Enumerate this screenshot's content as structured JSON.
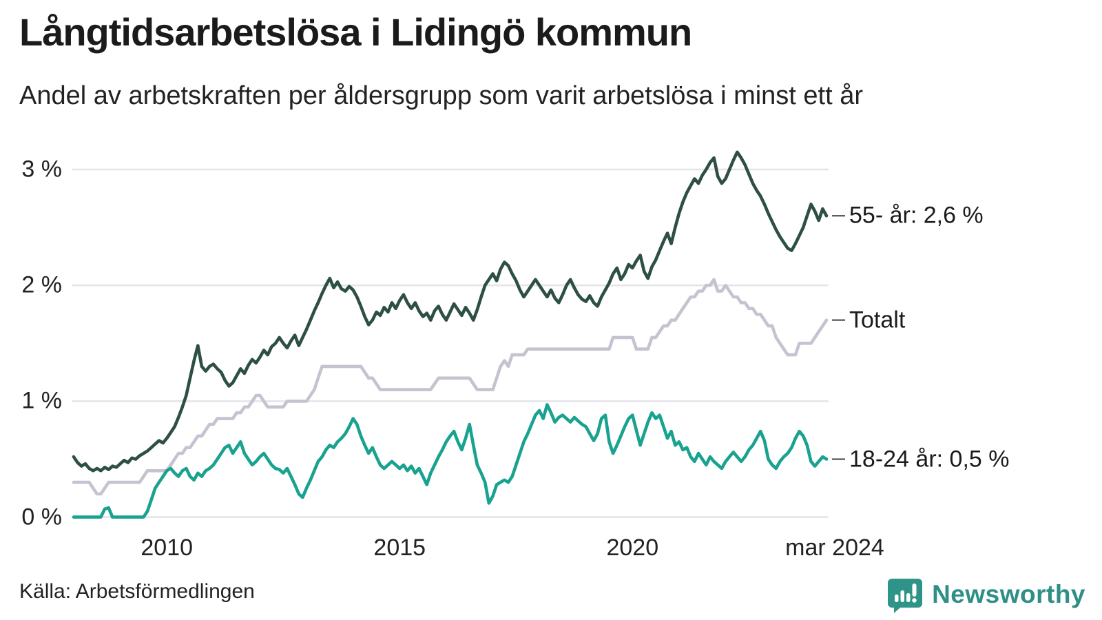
{
  "header": {
    "title": "Långtidsarbetslösa i Lidingö kommun",
    "subtitle": "Andel av arbetskraften per åldersgrupp som varit arbetslösa i minst ett år"
  },
  "footer": {
    "source": "Källa: Arbetsförmedlingen",
    "brand": "Newsworthy"
  },
  "colors": {
    "grid": "#e4e4e8",
    "axis_text": "#222222",
    "tick_dash": "#3d3d3d",
    "brand_teal": "#2e8f86",
    "background": "#ffffff"
  },
  "chart_data": {
    "type": "line",
    "title": "Långtidsarbetslösa i Lidingö kommun",
    "subtitle": "Andel av arbetskraften per åldersgrupp som varit arbetslösa i minst ett år",
    "x_start": "2008-01",
    "x_end": "2024-03",
    "frequency": "monthly",
    "grid": "horizontal",
    "ylim": [
      0,
      3.3
    ],
    "y_ticks": [
      {
        "value": 0,
        "label": "0 %"
      },
      {
        "value": 1,
        "label": "1 %"
      },
      {
        "value": 2,
        "label": "2 %"
      },
      {
        "value": 3,
        "label": "3 %"
      }
    ],
    "x_ticks": [
      {
        "index": 24,
        "label": "2010"
      },
      {
        "index": 84,
        "label": "2015"
      },
      {
        "index": 144,
        "label": "2020"
      },
      {
        "index": 194,
        "label": "mar 2024"
      }
    ],
    "series": [
      {
        "name": "55- år",
        "end_label": "55- år: 2,6 %",
        "color": "#2d4f45",
        "values": [
          0.52,
          0.47,
          0.44,
          0.46,
          0.42,
          0.4,
          0.42,
          0.4,
          0.43,
          0.41,
          0.44,
          0.43,
          0.46,
          0.49,
          0.47,
          0.51,
          0.5,
          0.53,
          0.55,
          0.57,
          0.6,
          0.63,
          0.66,
          0.64,
          0.68,
          0.73,
          0.78,
          0.86,
          0.95,
          1.05,
          1.2,
          1.35,
          1.48,
          1.3,
          1.26,
          1.3,
          1.32,
          1.28,
          1.25,
          1.18,
          1.13,
          1.16,
          1.22,
          1.28,
          1.24,
          1.31,
          1.36,
          1.33,
          1.38,
          1.44,
          1.4,
          1.47,
          1.5,
          1.55,
          1.5,
          1.46,
          1.52,
          1.57,
          1.48,
          1.55,
          1.62,
          1.7,
          1.78,
          1.85,
          1.93,
          2.0,
          2.06,
          1.98,
          2.03,
          1.97,
          1.95,
          1.99,
          1.96,
          1.9,
          1.82,
          1.73,
          1.66,
          1.7,
          1.77,
          1.74,
          1.81,
          1.77,
          1.85,
          1.8,
          1.87,
          1.92,
          1.85,
          1.8,
          1.85,
          1.78,
          1.73,
          1.76,
          1.7,
          1.78,
          1.82,
          1.75,
          1.7,
          1.77,
          1.84,
          1.79,
          1.74,
          1.81,
          1.76,
          1.7,
          1.79,
          1.9,
          2.0,
          2.05,
          2.1,
          2.04,
          2.14,
          2.2,
          2.17,
          2.1,
          2.04,
          1.96,
          1.9,
          1.95,
          2.0,
          2.05,
          2.0,
          1.95,
          1.9,
          1.96,
          1.89,
          1.85,
          1.92,
          2.0,
          2.05,
          1.98,
          1.92,
          1.88,
          1.86,
          1.91,
          1.85,
          1.82,
          1.9,
          1.96,
          2.02,
          2.1,
          2.15,
          2.05,
          2.1,
          2.18,
          2.15,
          2.21,
          2.26,
          2.12,
          2.06,
          2.16,
          2.22,
          2.3,
          2.38,
          2.45,
          2.36,
          2.5,
          2.62,
          2.72,
          2.8,
          2.86,
          2.92,
          2.88,
          2.95,
          3.0,
          3.06,
          3.1,
          2.94,
          2.88,
          2.92,
          3.0,
          3.08,
          3.15,
          3.1,
          3.04,
          2.96,
          2.88,
          2.82,
          2.77,
          2.7,
          2.62,
          2.55,
          2.48,
          2.42,
          2.37,
          2.32,
          2.3,
          2.36,
          2.43,
          2.5,
          2.6,
          2.7,
          2.64,
          2.56,
          2.66,
          2.6
        ]
      },
      {
        "name": "Totalt",
        "end_label": "Totalt",
        "color": "#c5c3d0",
        "values": [
          0.3,
          0.3,
          0.3,
          0.3,
          0.3,
          0.25,
          0.2,
          0.2,
          0.25,
          0.3,
          0.3,
          0.3,
          0.3,
          0.3,
          0.3,
          0.3,
          0.3,
          0.3,
          0.35,
          0.4,
          0.4,
          0.4,
          0.4,
          0.4,
          0.4,
          0.45,
          0.5,
          0.55,
          0.55,
          0.6,
          0.6,
          0.65,
          0.7,
          0.7,
          0.75,
          0.8,
          0.8,
          0.85,
          0.85,
          0.85,
          0.85,
          0.85,
          0.9,
          0.9,
          0.95,
          0.95,
          1.0,
          1.05,
          1.05,
          1.0,
          0.95,
          0.95,
          0.95,
          0.95,
          0.95,
          1.0,
          1.0,
          1.0,
          1.0,
          1.0,
          1.0,
          1.05,
          1.1,
          1.2,
          1.3,
          1.3,
          1.3,
          1.3,
          1.3,
          1.3,
          1.3,
          1.3,
          1.3,
          1.3,
          1.3,
          1.25,
          1.2,
          1.2,
          1.15,
          1.1,
          1.1,
          1.1,
          1.1,
          1.1,
          1.1,
          1.1,
          1.1,
          1.1,
          1.1,
          1.1,
          1.1,
          1.1,
          1.1,
          1.15,
          1.2,
          1.2,
          1.2,
          1.2,
          1.2,
          1.2,
          1.2,
          1.2,
          1.2,
          1.15,
          1.1,
          1.1,
          1.1,
          1.1,
          1.1,
          1.2,
          1.3,
          1.35,
          1.3,
          1.4,
          1.4,
          1.4,
          1.4,
          1.45,
          1.45,
          1.45,
          1.45,
          1.45,
          1.45,
          1.45,
          1.45,
          1.45,
          1.45,
          1.45,
          1.45,
          1.45,
          1.45,
          1.45,
          1.45,
          1.45,
          1.45,
          1.45,
          1.45,
          1.45,
          1.45,
          1.55,
          1.55,
          1.55,
          1.55,
          1.55,
          1.55,
          1.45,
          1.45,
          1.45,
          1.45,
          1.55,
          1.55,
          1.6,
          1.65,
          1.65,
          1.7,
          1.7,
          1.75,
          1.8,
          1.85,
          1.9,
          1.9,
          1.95,
          1.95,
          2.0,
          2.0,
          2.05,
          1.95,
          1.95,
          2.0,
          1.95,
          1.9,
          1.9,
          1.85,
          1.85,
          1.8,
          1.8,
          1.75,
          1.75,
          1.7,
          1.65,
          1.65,
          1.55,
          1.5,
          1.45,
          1.4,
          1.4,
          1.4,
          1.5,
          1.5,
          1.5,
          1.5,
          1.55,
          1.6,
          1.65,
          1.7
        ]
      },
      {
        "name": "18-24 år",
        "end_label": "18-24 år: 0,5 %",
        "color": "#18a28f",
        "values": [
          0.0,
          0.0,
          0.0,
          0.0,
          0.0,
          0.0,
          0.0,
          0.0,
          0.07,
          0.08,
          0.0,
          0.0,
          0.0,
          0.0,
          0.0,
          0.0,
          0.0,
          0.0,
          0.0,
          0.05,
          0.15,
          0.25,
          0.3,
          0.35,
          0.4,
          0.42,
          0.38,
          0.35,
          0.4,
          0.42,
          0.35,
          0.32,
          0.38,
          0.35,
          0.4,
          0.42,
          0.45,
          0.5,
          0.55,
          0.6,
          0.62,
          0.55,
          0.6,
          0.65,
          0.55,
          0.5,
          0.45,
          0.48,
          0.52,
          0.55,
          0.5,
          0.45,
          0.42,
          0.41,
          0.38,
          0.42,
          0.35,
          0.28,
          0.2,
          0.17,
          0.25,
          0.32,
          0.4,
          0.48,
          0.52,
          0.58,
          0.62,
          0.6,
          0.65,
          0.68,
          0.72,
          0.78,
          0.85,
          0.8,
          0.7,
          0.62,
          0.55,
          0.6,
          0.52,
          0.45,
          0.42,
          0.45,
          0.48,
          0.45,
          0.42,
          0.45,
          0.4,
          0.44,
          0.38,
          0.42,
          0.35,
          0.28,
          0.38,
          0.45,
          0.52,
          0.58,
          0.65,
          0.7,
          0.74,
          0.65,
          0.58,
          0.68,
          0.8,
          0.62,
          0.45,
          0.38,
          0.3,
          0.12,
          0.18,
          0.28,
          0.3,
          0.32,
          0.3,
          0.35,
          0.45,
          0.55,
          0.65,
          0.72,
          0.8,
          0.88,
          0.92,
          0.85,
          0.97,
          0.9,
          0.82,
          0.86,
          0.88,
          0.85,
          0.82,
          0.86,
          0.83,
          0.8,
          0.78,
          0.72,
          0.66,
          0.72,
          0.85,
          0.88,
          0.65,
          0.55,
          0.62,
          0.7,
          0.78,
          0.85,
          0.88,
          0.75,
          0.62,
          0.72,
          0.82,
          0.9,
          0.85,
          0.88,
          0.78,
          0.68,
          0.74,
          0.62,
          0.65,
          0.58,
          0.6,
          0.52,
          0.48,
          0.55,
          0.5,
          0.45,
          0.52,
          0.48,
          0.45,
          0.42,
          0.48,
          0.52,
          0.56,
          0.52,
          0.48,
          0.52,
          0.58,
          0.62,
          0.68,
          0.74,
          0.66,
          0.5,
          0.45,
          0.42,
          0.48,
          0.52,
          0.55,
          0.6,
          0.68,
          0.74,
          0.7,
          0.62,
          0.48,
          0.44,
          0.48,
          0.52,
          0.5
        ]
      }
    ]
  }
}
